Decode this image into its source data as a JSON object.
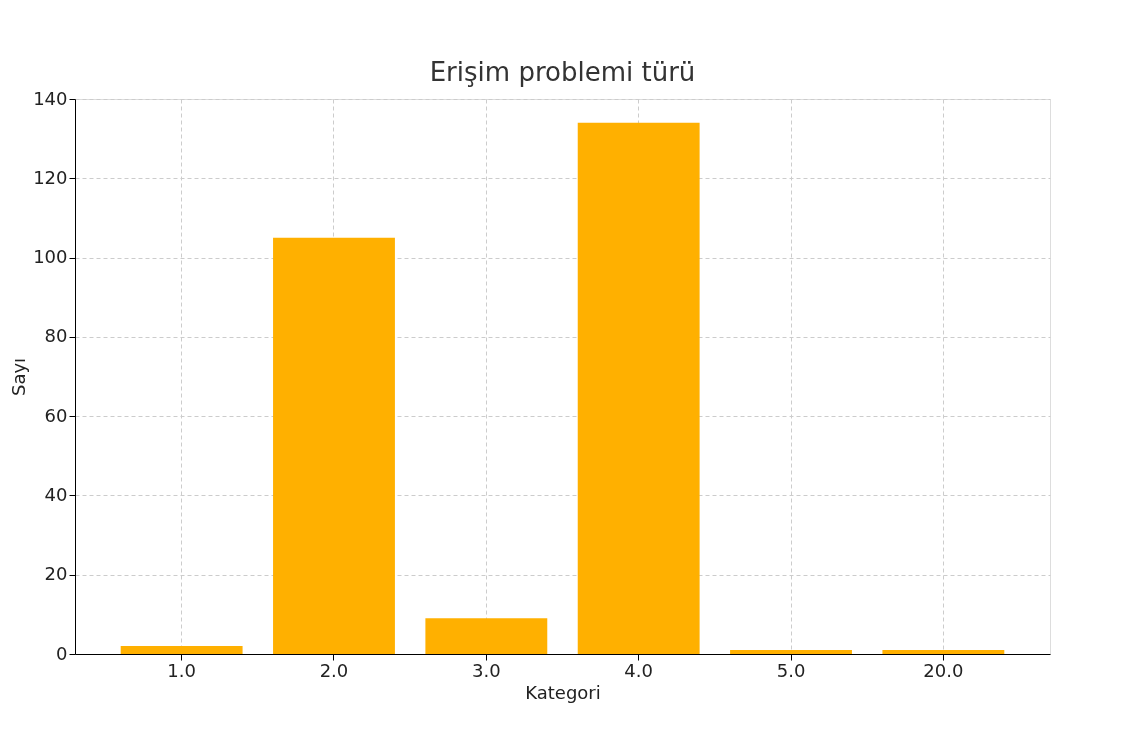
{
  "chart_data": {
    "type": "bar",
    "title": "Erişim problemi türü",
    "xlabel": "Kategori",
    "ylabel": "Sayı",
    "categories": [
      "1.0",
      "2.0",
      "3.0",
      "4.0",
      "5.0",
      "20.0"
    ],
    "values": [
      2,
      105,
      9,
      134,
      1,
      1
    ],
    "color": "#ffb000",
    "ylim": [
      0,
      140
    ],
    "yticks": [
      0,
      20,
      40,
      60,
      80,
      100,
      120,
      140
    ],
    "grid": true
  }
}
